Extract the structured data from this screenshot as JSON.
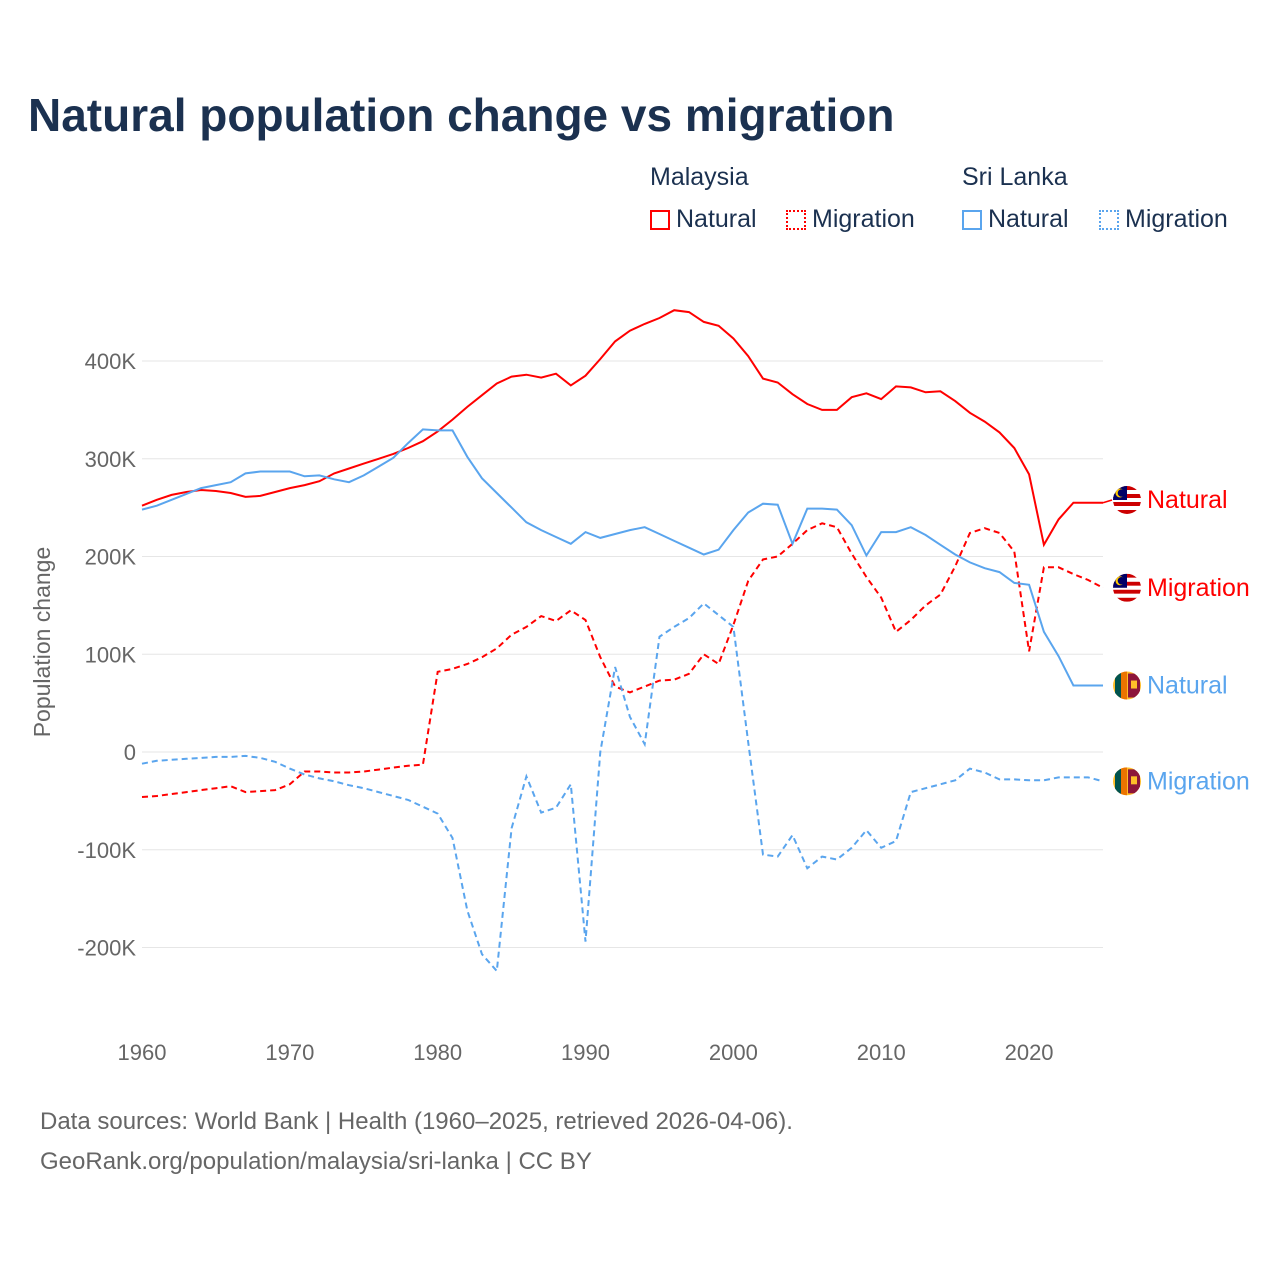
{
  "title": "Natural population change vs migration",
  "legend": {
    "groups": [
      {
        "name": "Malaysia",
        "items": [
          "Natural",
          "Migration"
        ],
        "color": "#ff0000"
      },
      {
        "name": "Sri Lanka",
        "items": [
          "Natural",
          "Migration"
        ],
        "color": "#5aa5ee"
      }
    ]
  },
  "footer": {
    "line1": "Data sources: World Bank | Health (1960–2025, retrieved 2026-04-06).",
    "line2": "GeoRank.org/population/malaysia/sri-lanka | CC BY"
  },
  "chart_data": {
    "type": "line",
    "title": "Natural population change vs migration",
    "xlabel": "",
    "ylabel": "Population change",
    "xlim": [
      1960,
      2025
    ],
    "ylim": [
      -260000,
      470000
    ],
    "x_ticks": [
      1960,
      1970,
      1980,
      1990,
      2000,
      2010,
      2020
    ],
    "x_tick_labels": [
      "1960",
      "1970",
      "1980",
      "1990",
      "2000",
      "2010",
      "2020"
    ],
    "y_ticks": [
      -200000,
      -100000,
      0,
      100000,
      200000,
      300000,
      400000
    ],
    "y_tick_labels": [
      "-200K",
      "-100K",
      "0",
      "100K",
      "200K",
      "300K",
      "400K"
    ],
    "grid": true,
    "x_start": 1960,
    "series": [
      {
        "name": "Malaysia Natural",
        "end_label": "Natural",
        "color": "#ff0000",
        "dash": false,
        "flag": "malaysia",
        "values_thousands": [
          252,
          258,
          263,
          266,
          268,
          267,
          265,
          261,
          262,
          266,
          270,
          273,
          277,
          285,
          290,
          295,
          300,
          305,
          311,
          318,
          328,
          340,
          353,
          365,
          377,
          384,
          386,
          383,
          387,
          375,
          385,
          402,
          420,
          431,
          438,
          444,
          452,
          450,
          440,
          436,
          423,
          405,
          382,
          378,
          366,
          356,
          350,
          350,
          363,
          367,
          361,
          374,
          373,
          368,
          369,
          359,
          347,
          338,
          327,
          311,
          284,
          212,
          238,
          255,
          255,
          255
        ]
      },
      {
        "name": "Malaysia Migration",
        "end_label": "Migration",
        "color": "#ff0000",
        "dash": true,
        "flag": "malaysia",
        "values_thousands": [
          -46,
          -45,
          -43,
          -41,
          -39,
          -37,
          -35,
          -41,
          -40,
          -39,
          -33,
          -20,
          -20,
          -21,
          -21,
          -20,
          -18,
          -16,
          -14,
          -13,
          82,
          85,
          90,
          97,
          106,
          120,
          128,
          139,
          134,
          145,
          135,
          97,
          67,
          61,
          67,
          73,
          74,
          80,
          100,
          90,
          130,
          175,
          197,
          200,
          213,
          227,
          234,
          230,
          203,
          179,
          158,
          123,
          135,
          150,
          161,
          190,
          224,
          229,
          224,
          205,
          103,
          189,
          189,
          182,
          176,
          168
        ]
      },
      {
        "name": "Sri Lanka Natural",
        "end_label": "Natural",
        "color": "#5aa5ee",
        "dash": false,
        "flag": "sri-lanka",
        "values_thousands": [
          248,
          252,
          258,
          264,
          270,
          273,
          276,
          285,
          287,
          287,
          287,
          282,
          283,
          279,
          276,
          283,
          292,
          301,
          316,
          330,
          329,
          329,
          302,
          280,
          265,
          250,
          235,
          227,
          220,
          213,
          225,
          219,
          223,
          227,
          230,
          223,
          216,
          209,
          202,
          207,
          227,
          245,
          254,
          253,
          213,
          249,
          249,
          248,
          232,
          201,
          225,
          225,
          230,
          222,
          212,
          202,
          194,
          188,
          184,
          173,
          171,
          123,
          98,
          68,
          68,
          68
        ]
      },
      {
        "name": "Sri Lanka Migration",
        "end_label": "Migration",
        "color": "#5aa5ee",
        "dash": true,
        "flag": "sri-lanka",
        "values_thousands": [
          -12,
          -9,
          -8,
          -7,
          -6,
          -5,
          -5,
          -4,
          -6,
          -10,
          -17,
          -23,
          -27,
          -30,
          -34,
          -37,
          -41,
          -45,
          -49,
          -56,
          -63,
          -88,
          -162,
          -207,
          -224,
          -78,
          -25,
          -62,
          -57,
          -33,
          -194,
          0,
          87,
          36,
          8,
          118,
          128,
          137,
          152,
          140,
          128,
          10,
          -105,
          -107,
          -85,
          -119,
          -107,
          -110,
          -98,
          -80,
          -98,
          -91,
          -41,
          -37,
          -33,
          -29,
          -17,
          -21,
          -28,
          -28,
          -29,
          -29,
          -26,
          -26,
          -26,
          -30
        ]
      }
    ]
  }
}
